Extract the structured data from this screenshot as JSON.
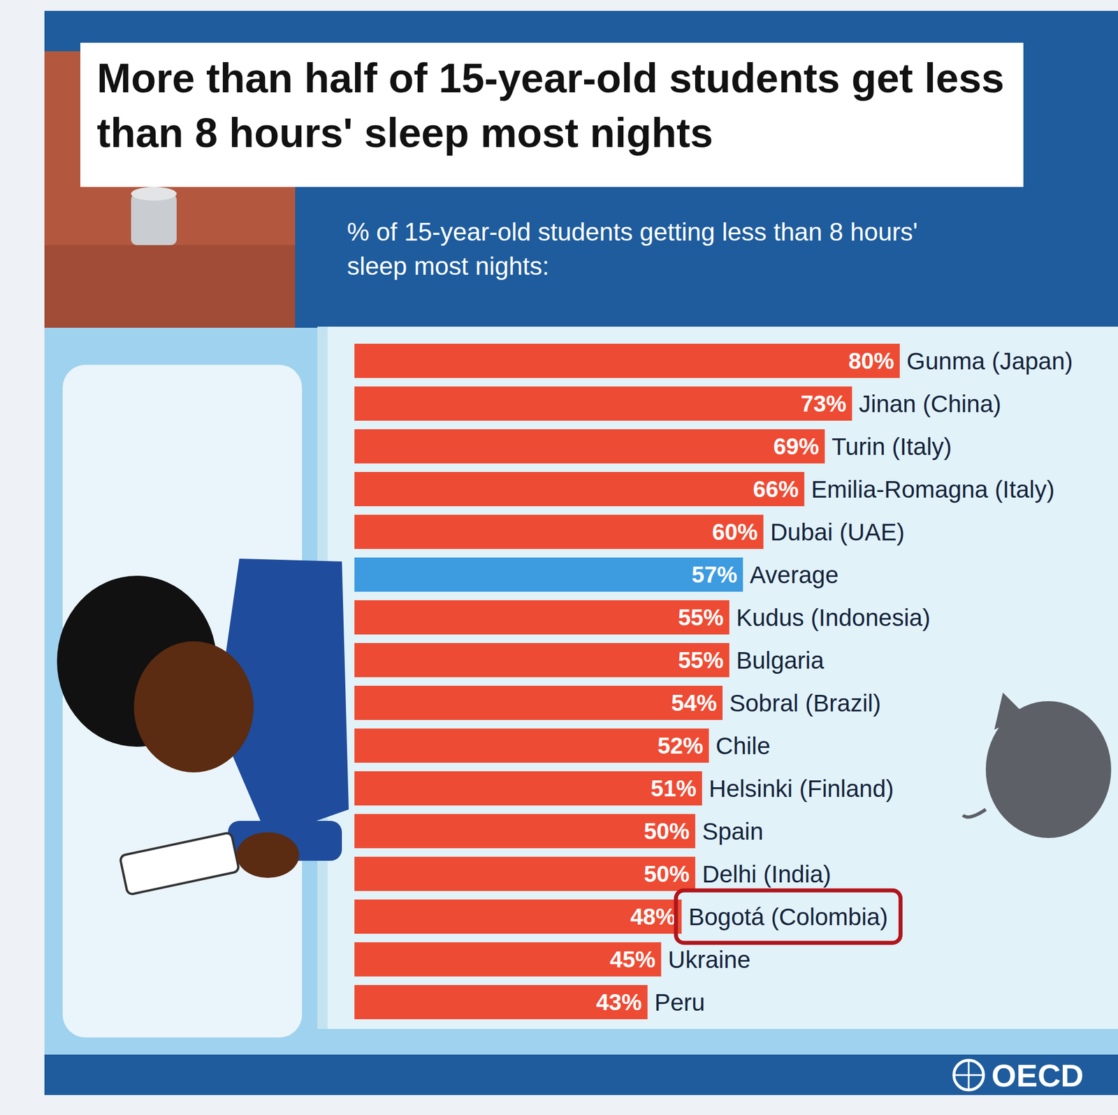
{
  "chart_data": {
    "type": "bar",
    "orientation": "horizontal",
    "title": "More than half of 15-year-old students get less than 8 hours' sleep most nights",
    "subtitle": "% of 15-year-old students getting less than 8 hours' sleep most nights:",
    "source": "OECD",
    "categories": [
      "Gunma (Japan)",
      "Jinan (China)",
      "Turin (Italy)",
      "Emilia-Romagna (Italy)",
      "Dubai (UAE)",
      "Average",
      "Kudus (Indonesia)",
      "Bulgaria",
      "Sobral (Brazil)",
      "Chile",
      "Helsinki (Finland)",
      "Spain",
      "Delhi (India)",
      "Bogotá (Colombia)",
      "Ukraine",
      "Peru"
    ],
    "values": [
      80,
      73,
      69,
      66,
      60,
      57,
      55,
      55,
      54,
      52,
      51,
      50,
      50,
      48,
      45,
      43
    ],
    "value_labels": [
      "80%",
      "73%",
      "69%",
      "66%",
      "60%",
      "57%",
      "55%",
      "55%",
      "54%",
      "52%",
      "51%",
      "50%",
      "50%",
      "48%",
      "45%",
      "43%"
    ],
    "colors": [
      "#ee4b34",
      "#ee4b34",
      "#ee4b34",
      "#ee4b34",
      "#ee4b34",
      "#3d9be0",
      "#ee4b34",
      "#ee4b34",
      "#ee4b34",
      "#ee4b34",
      "#ee4b34",
      "#ee4b34",
      "#ee4b34",
      "#ee4b34",
      "#ee4b34",
      "#ee4b34"
    ],
    "xlim": [
      0,
      80
    ],
    "data_labels": true,
    "tick_labels": false,
    "grid": false
  }
}
